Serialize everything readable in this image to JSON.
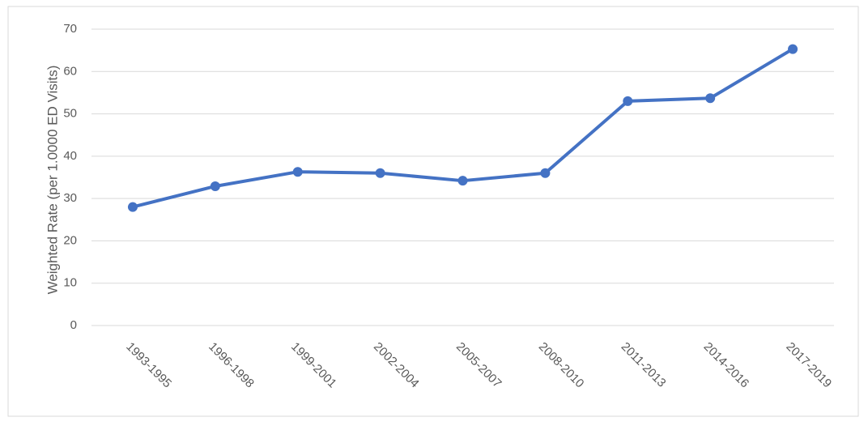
{
  "chart_data": {
    "type": "line",
    "y_label": "Weighted Rate (per 1.0000 ED Visits)",
    "categories": [
      "1993-1995",
      "1996-1998",
      "1999-2001",
      "2002-2004",
      "2005-2007",
      "2008-2010",
      "2011-2013",
      "2014-2016",
      "2017-2019"
    ],
    "values": [
      28,
      32.9,
      36.3,
      36,
      34.2,
      36,
      53,
      53.7,
      65.3
    ],
    "color": "#4472c4",
    "ylim": [
      0,
      70
    ],
    "yticks": [
      0,
      10,
      20,
      30,
      40,
      50,
      60,
      70
    ],
    "grid": true
  }
}
